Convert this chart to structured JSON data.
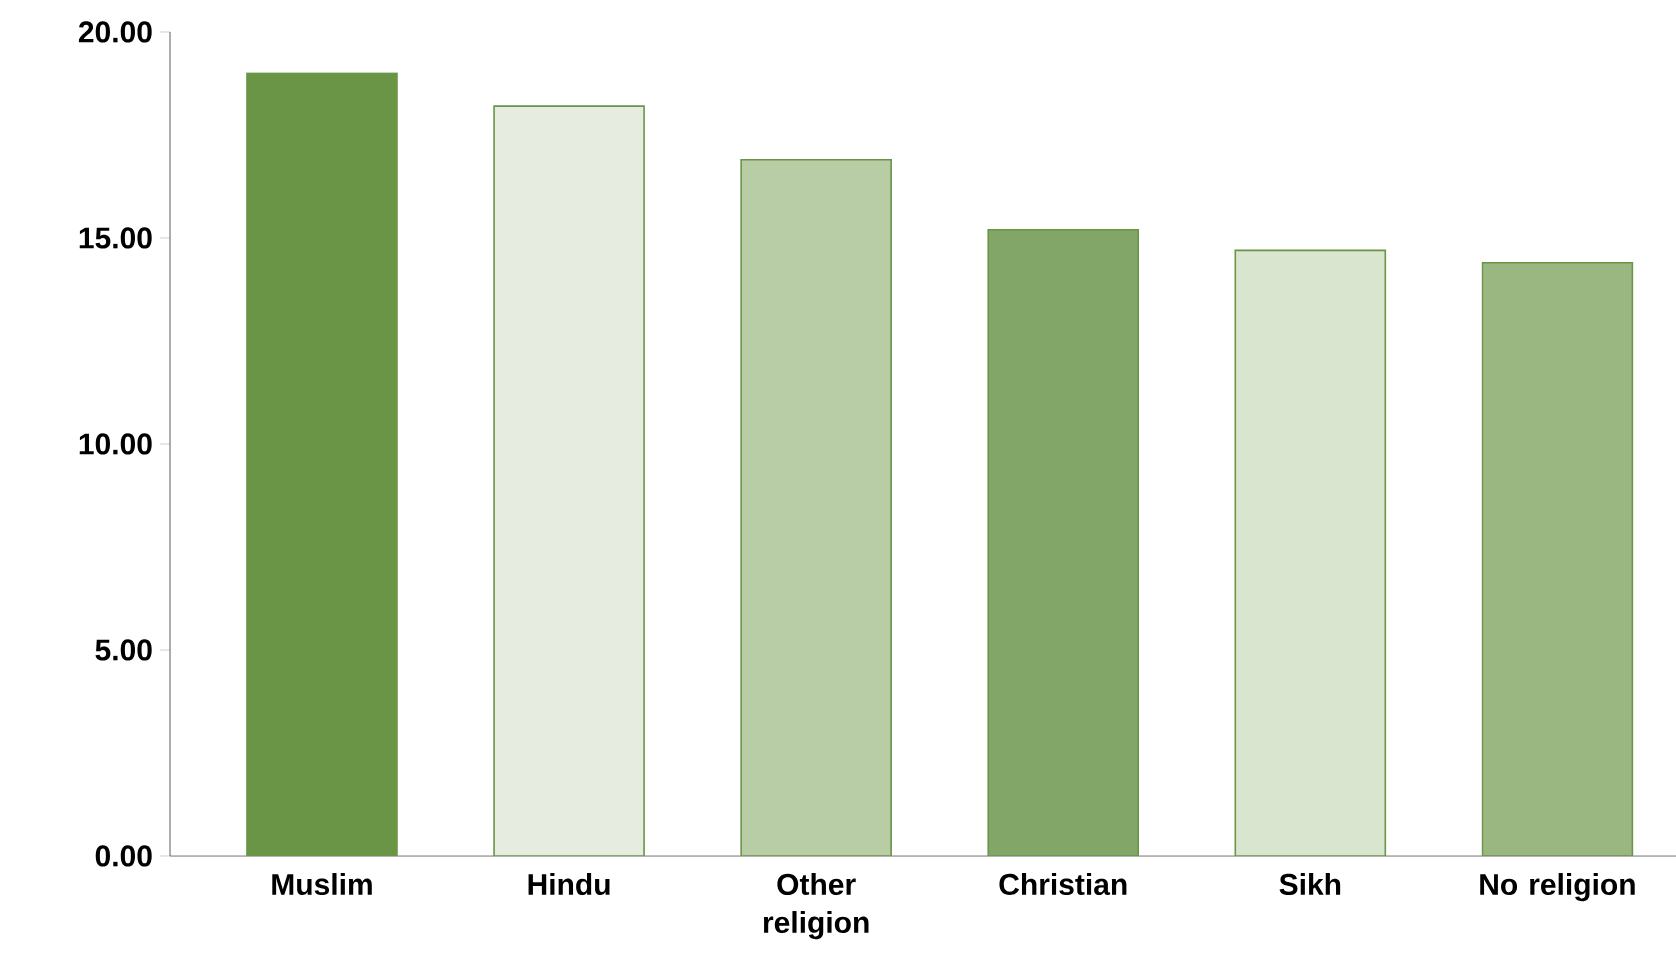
{
  "chart_data": {
    "type": "bar",
    "categories": [
      "Muslim",
      "Hindu",
      "Other religion",
      "Christian",
      "Sikh",
      "No religion"
    ],
    "values": [
      19.0,
      18.2,
      16.9,
      15.2,
      14.7,
      14.4
    ],
    "colors": [
      "#6a9446",
      "#e6ede0",
      "#b8cca6",
      "#82a667",
      "#d9e5cf",
      "#9ab782"
    ],
    "ylim": [
      0,
      20
    ],
    "yticks": [
      {
        "value": 0,
        "label": "0.00"
      },
      {
        "value": 5,
        "label": "5.00"
      },
      {
        "value": 10,
        "label": "10.00"
      },
      {
        "value": 15,
        "label": "15.00"
      },
      {
        "value": 20,
        "label": "20.00"
      }
    ],
    "grid": false
  }
}
